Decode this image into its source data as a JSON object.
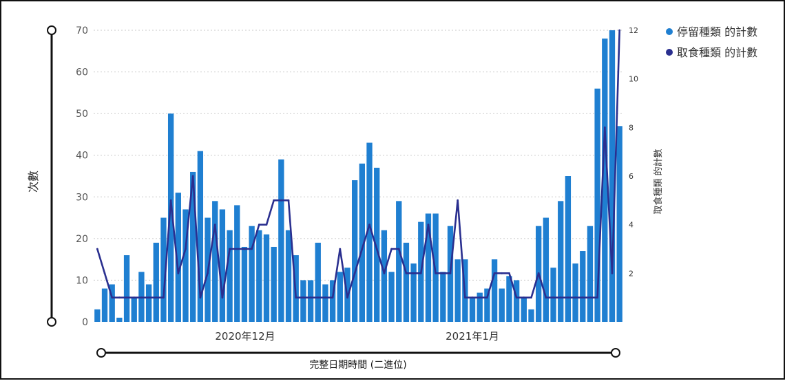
{
  "chart_data": {
    "type": "bar",
    "title": "",
    "xlabel": "完整日期時間 (二進位)",
    "ylabel": "次數",
    "ylabel_right": "取食種類 的計數",
    "x_tick_labels": [
      "2020年12月",
      "2021年1月"
    ],
    "ylim": [
      0,
      70
    ],
    "y_ticks": [
      "0",
      "10",
      "20",
      "30",
      "40",
      "50",
      "60",
      "70"
    ],
    "y2lim": [
      0,
      12
    ],
    "y2_ticks": [
      "2",
      "4",
      "6",
      "8",
      "10",
      "12"
    ],
    "grid": "horizontal dotted",
    "legend_position": "top-right",
    "series": [
      {
        "name": "停留種類 的計數",
        "kind": "bar",
        "axis": "left",
        "color": "#1f7fd1",
        "values": [
          3,
          8,
          9,
          1,
          16,
          6,
          12,
          9,
          19,
          25,
          50,
          31,
          27,
          36,
          41,
          25,
          29,
          27,
          22,
          28,
          18,
          23,
          22,
          21,
          18,
          39,
          22,
          16,
          10,
          10,
          19,
          9,
          10,
          12,
          13,
          34,
          38,
          43,
          37,
          22,
          12,
          29,
          19,
          14,
          24,
          26,
          26,
          12,
          23,
          15,
          15,
          6,
          7,
          8,
          15,
          8,
          11,
          10,
          6,
          3,
          23,
          25,
          13,
          29,
          35,
          14,
          17,
          23,
          56,
          68,
          70,
          47
        ]
      },
      {
        "name": "取食種類 的計數",
        "kind": "line",
        "axis": "right",
        "color": "#2a2f8f",
        "values": [
          3,
          2,
          1,
          1,
          1,
          1,
          1,
          1,
          1,
          1,
          5,
          2,
          3,
          6,
          1,
          2,
          4,
          1,
          3,
          3,
          3,
          3,
          4,
          4,
          5,
          5,
          5,
          1,
          1,
          1,
          1,
          1,
          1,
          3,
          1,
          2,
          3,
          4,
          3,
          2,
          3,
          3,
          2,
          2,
          2,
          4,
          2,
          2,
          2,
          5,
          1,
          1,
          1,
          1,
          2,
          2,
          2,
          1,
          1,
          1,
          2,
          1,
          1,
          1,
          1,
          1,
          1,
          1,
          1,
          8,
          2,
          12
        ]
      }
    ]
  }
}
